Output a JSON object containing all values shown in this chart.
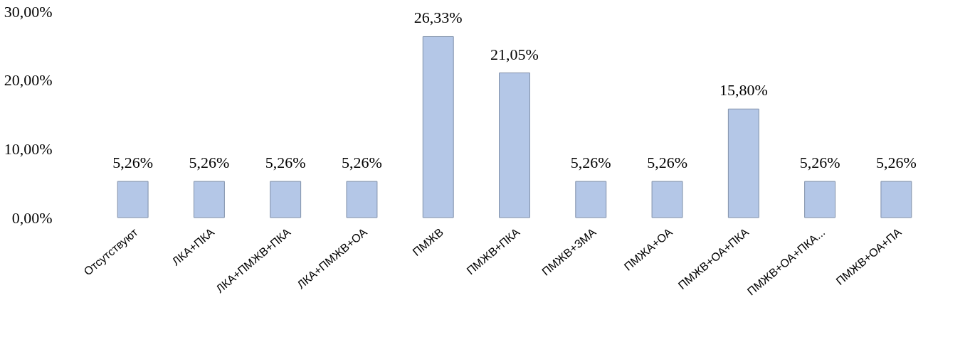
{
  "chart_data": {
    "type": "bar",
    "categories": [
      "Отсутствуют",
      "ЛКА+ПКА",
      "ЛКА+ПМЖВ+ПКА",
      "ЛКА+ПМЖВ+ОА",
      "ПМЖВ",
      "ПМЖВ+ПКА",
      "ПМЖВ+ЗМА",
      "ПМЖА+ОА",
      "ПМЖВ+ОА+ПКА",
      "ПМЖВ+ОА+ПКА...",
      "ПМЖВ+ОА+ПА"
    ],
    "values": [
      5.26,
      5.26,
      5.26,
      5.26,
      26.33,
      21.05,
      5.26,
      5.26,
      15.8,
      5.26,
      5.26
    ],
    "value_labels": [
      "5,26%",
      "5,26%",
      "5,26%",
      "5,26%",
      "26,33%",
      "21,05%",
      "5,26%",
      "5,26%",
      "15,80%",
      "5,26%",
      "5,26%"
    ],
    "color": "#b4c7e7",
    "ylim": [
      0,
      30
    ],
    "yticks": [
      {
        "value": 0,
        "label": "0,00%"
      },
      {
        "value": 10,
        "label": "10,00%"
      },
      {
        "value": 20,
        "label": "20,00%"
      },
      {
        "value": 30,
        "label": "30,00%"
      }
    ],
    "grid": false
  }
}
